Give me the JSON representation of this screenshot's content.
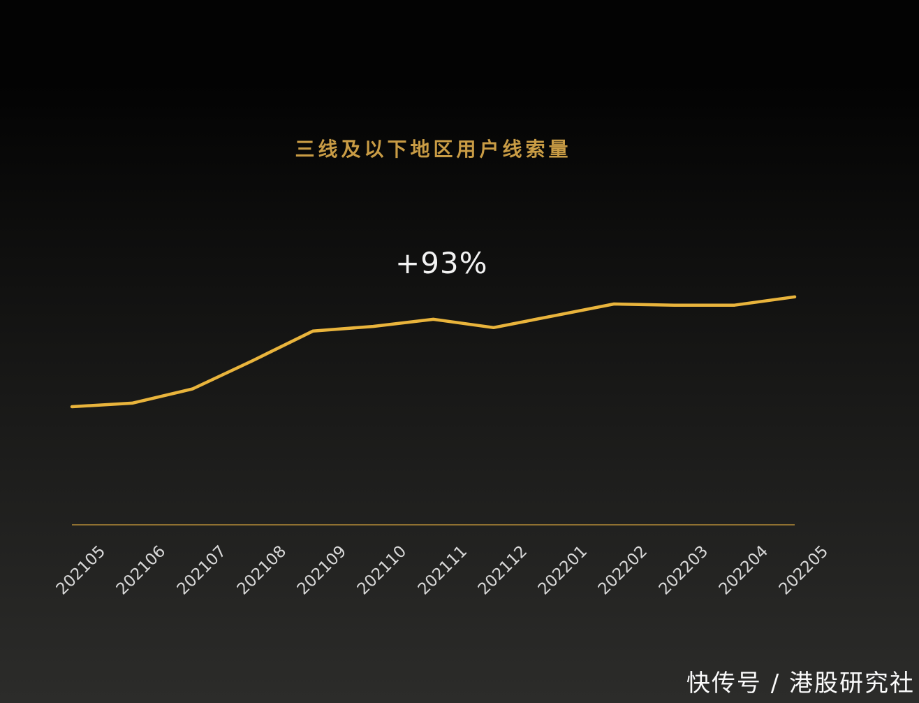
{
  "colors": {
    "bg_top": "#030303",
    "bg_mid": "#151514",
    "bg_bottom": "#2c2c2a",
    "line": "#e9b43c",
    "axis": "#8f7031",
    "title": "#c99c45",
    "annotation": "#f2f2f2",
    "label": "#d8d8d8",
    "watermark": "#fafafa"
  },
  "watermark": {
    "text": "快传号 / 港股研究社"
  },
  "chart_data": {
    "type": "line",
    "title": "三线及以下地区用户线索量",
    "annotation": "+93%",
    "categories": [
      "202105",
      "202106",
      "202107",
      "202108",
      "202109",
      "202110",
      "202111",
      "202112",
      "202201",
      "202202",
      "202203",
      "202204",
      "202205"
    ],
    "values": [
      100,
      103,
      115,
      139,
      164,
      168,
      174,
      167,
      177,
      187,
      186,
      186,
      193
    ],
    "values_basis": "index estimated from line pixel heights, 202105 = 100; final point ≈ +93% vs first",
    "series": [
      {
        "name": "三线及以下地区用户线索量",
        "values": [
          100,
          103,
          115,
          139,
          164,
          168,
          174,
          167,
          177,
          187,
          186,
          186,
          193
        ]
      }
    ],
    "xlabel": "",
    "ylabel": "",
    "ylim": [
      0,
      220
    ],
    "x_tick_rotation": -45,
    "grid": false,
    "legend": false,
    "y_axis_visible": false,
    "line_color": "#e9b43c"
  }
}
